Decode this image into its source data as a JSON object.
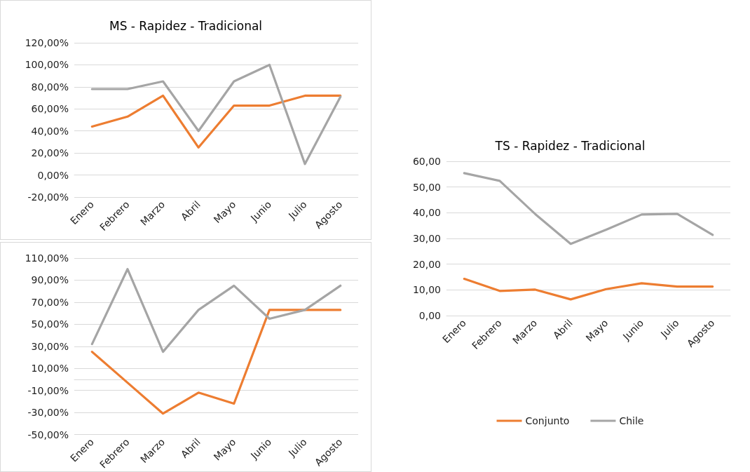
{
  "chart_data": [
    {
      "type": "line",
      "title": "MS - Rapidez - Tradicional",
      "categories": [
        "Enero",
        "Febrero",
        "Marzo",
        "Abril",
        "Mayo",
        "Junio",
        "Julio",
        "Agosto"
      ],
      "series": [
        {
          "color": "#ed7d31",
          "values": [
            44,
            53,
            72,
            25,
            63,
            63,
            72,
            72
          ]
        },
        {
          "color": "#a5a5a5",
          "values": [
            78,
            78,
            85,
            40,
            85,
            100,
            10,
            71
          ]
        }
      ],
      "ylim": [
        -20,
        120
      ],
      "yticks": [
        {
          "value": -20,
          "label": "-20,00%"
        },
        {
          "value": 0,
          "label": "0,00%"
        },
        {
          "value": 20,
          "label": "20,00%"
        },
        {
          "value": 40,
          "label": "40,00%"
        },
        {
          "value": 60,
          "label": "60,00%"
        },
        {
          "value": 80,
          "label": "80,00%"
        },
        {
          "value": 100,
          "label": "100,00%"
        },
        {
          "value": 120,
          "label": "120,00%"
        }
      ],
      "grid": "y",
      "marker": "none",
      "line_style": "solid",
      "legend": false
    },
    {
      "type": "line",
      "categories": [
        "Enero",
        "Febrero",
        "Marzo",
        "Abril",
        "Mayo",
        "Junio",
        "Julio",
        "Agosto"
      ],
      "series": [
        {
          "color": "#ed7d31",
          "values": [
            25,
            -3,
            -31,
            -12,
            -22,
            63,
            63,
            63
          ]
        },
        {
          "color": "#a5a5a5",
          "values": [
            32,
            100,
            25,
            63,
            85,
            55,
            63,
            85
          ]
        }
      ],
      "ylim": [
        -50,
        110
      ],
      "yticks": [
        {
          "value": -50,
          "label": "-50,00%"
        },
        {
          "value": -30,
          "label": "-30,00%"
        },
        {
          "value": -10,
          "label": "-10,00%"
        },
        {
          "value": 10,
          "label": "10,00%"
        },
        {
          "value": 30,
          "label": "30,00%"
        },
        {
          "value": 50,
          "label": "50,00%"
        },
        {
          "value": 70,
          "label": "70,00%"
        },
        {
          "value": 90,
          "label": "90,00%"
        },
        {
          "value": 110,
          "label": "110,00%"
        }
      ],
      "grid": "y",
      "marker": "none",
      "line_style": "solid",
      "legend": false
    },
    {
      "type": "line",
      "title": "TS - Rapidez - Tradicional",
      "categories": [
        "Enero",
        "Febrero",
        "Marzo",
        "Abril",
        "Mayo",
        "Junio",
        "Julio",
        "Agosto"
      ],
      "series": [
        {
          "name": "Conjunto",
          "color": "#ed7d31",
          "values": [
            14.3,
            9.6,
            10.1,
            6.3,
            10.3,
            12.6,
            11.3,
            11.3
          ]
        },
        {
          "name": "Chile",
          "color": "#a5a5a5",
          "values": [
            55.4,
            52.4,
            39.5,
            27.9,
            33.4,
            39.3,
            39.6,
            31.4
          ]
        }
      ],
      "ylim": [
        0,
        60
      ],
      "yticks": [
        {
          "value": 0,
          "label": "0,00"
        },
        {
          "value": 10,
          "label": "10,00"
        },
        {
          "value": 20,
          "label": "20,00"
        },
        {
          "value": 30,
          "label": "30,00"
        },
        {
          "value": 40,
          "label": "40,00"
        },
        {
          "value": 50,
          "label": "50,00"
        },
        {
          "value": 60,
          "label": "60,00"
        }
      ],
      "grid": "y",
      "marker": "none",
      "line_style": "solid",
      "legend": "bottom"
    }
  ]
}
